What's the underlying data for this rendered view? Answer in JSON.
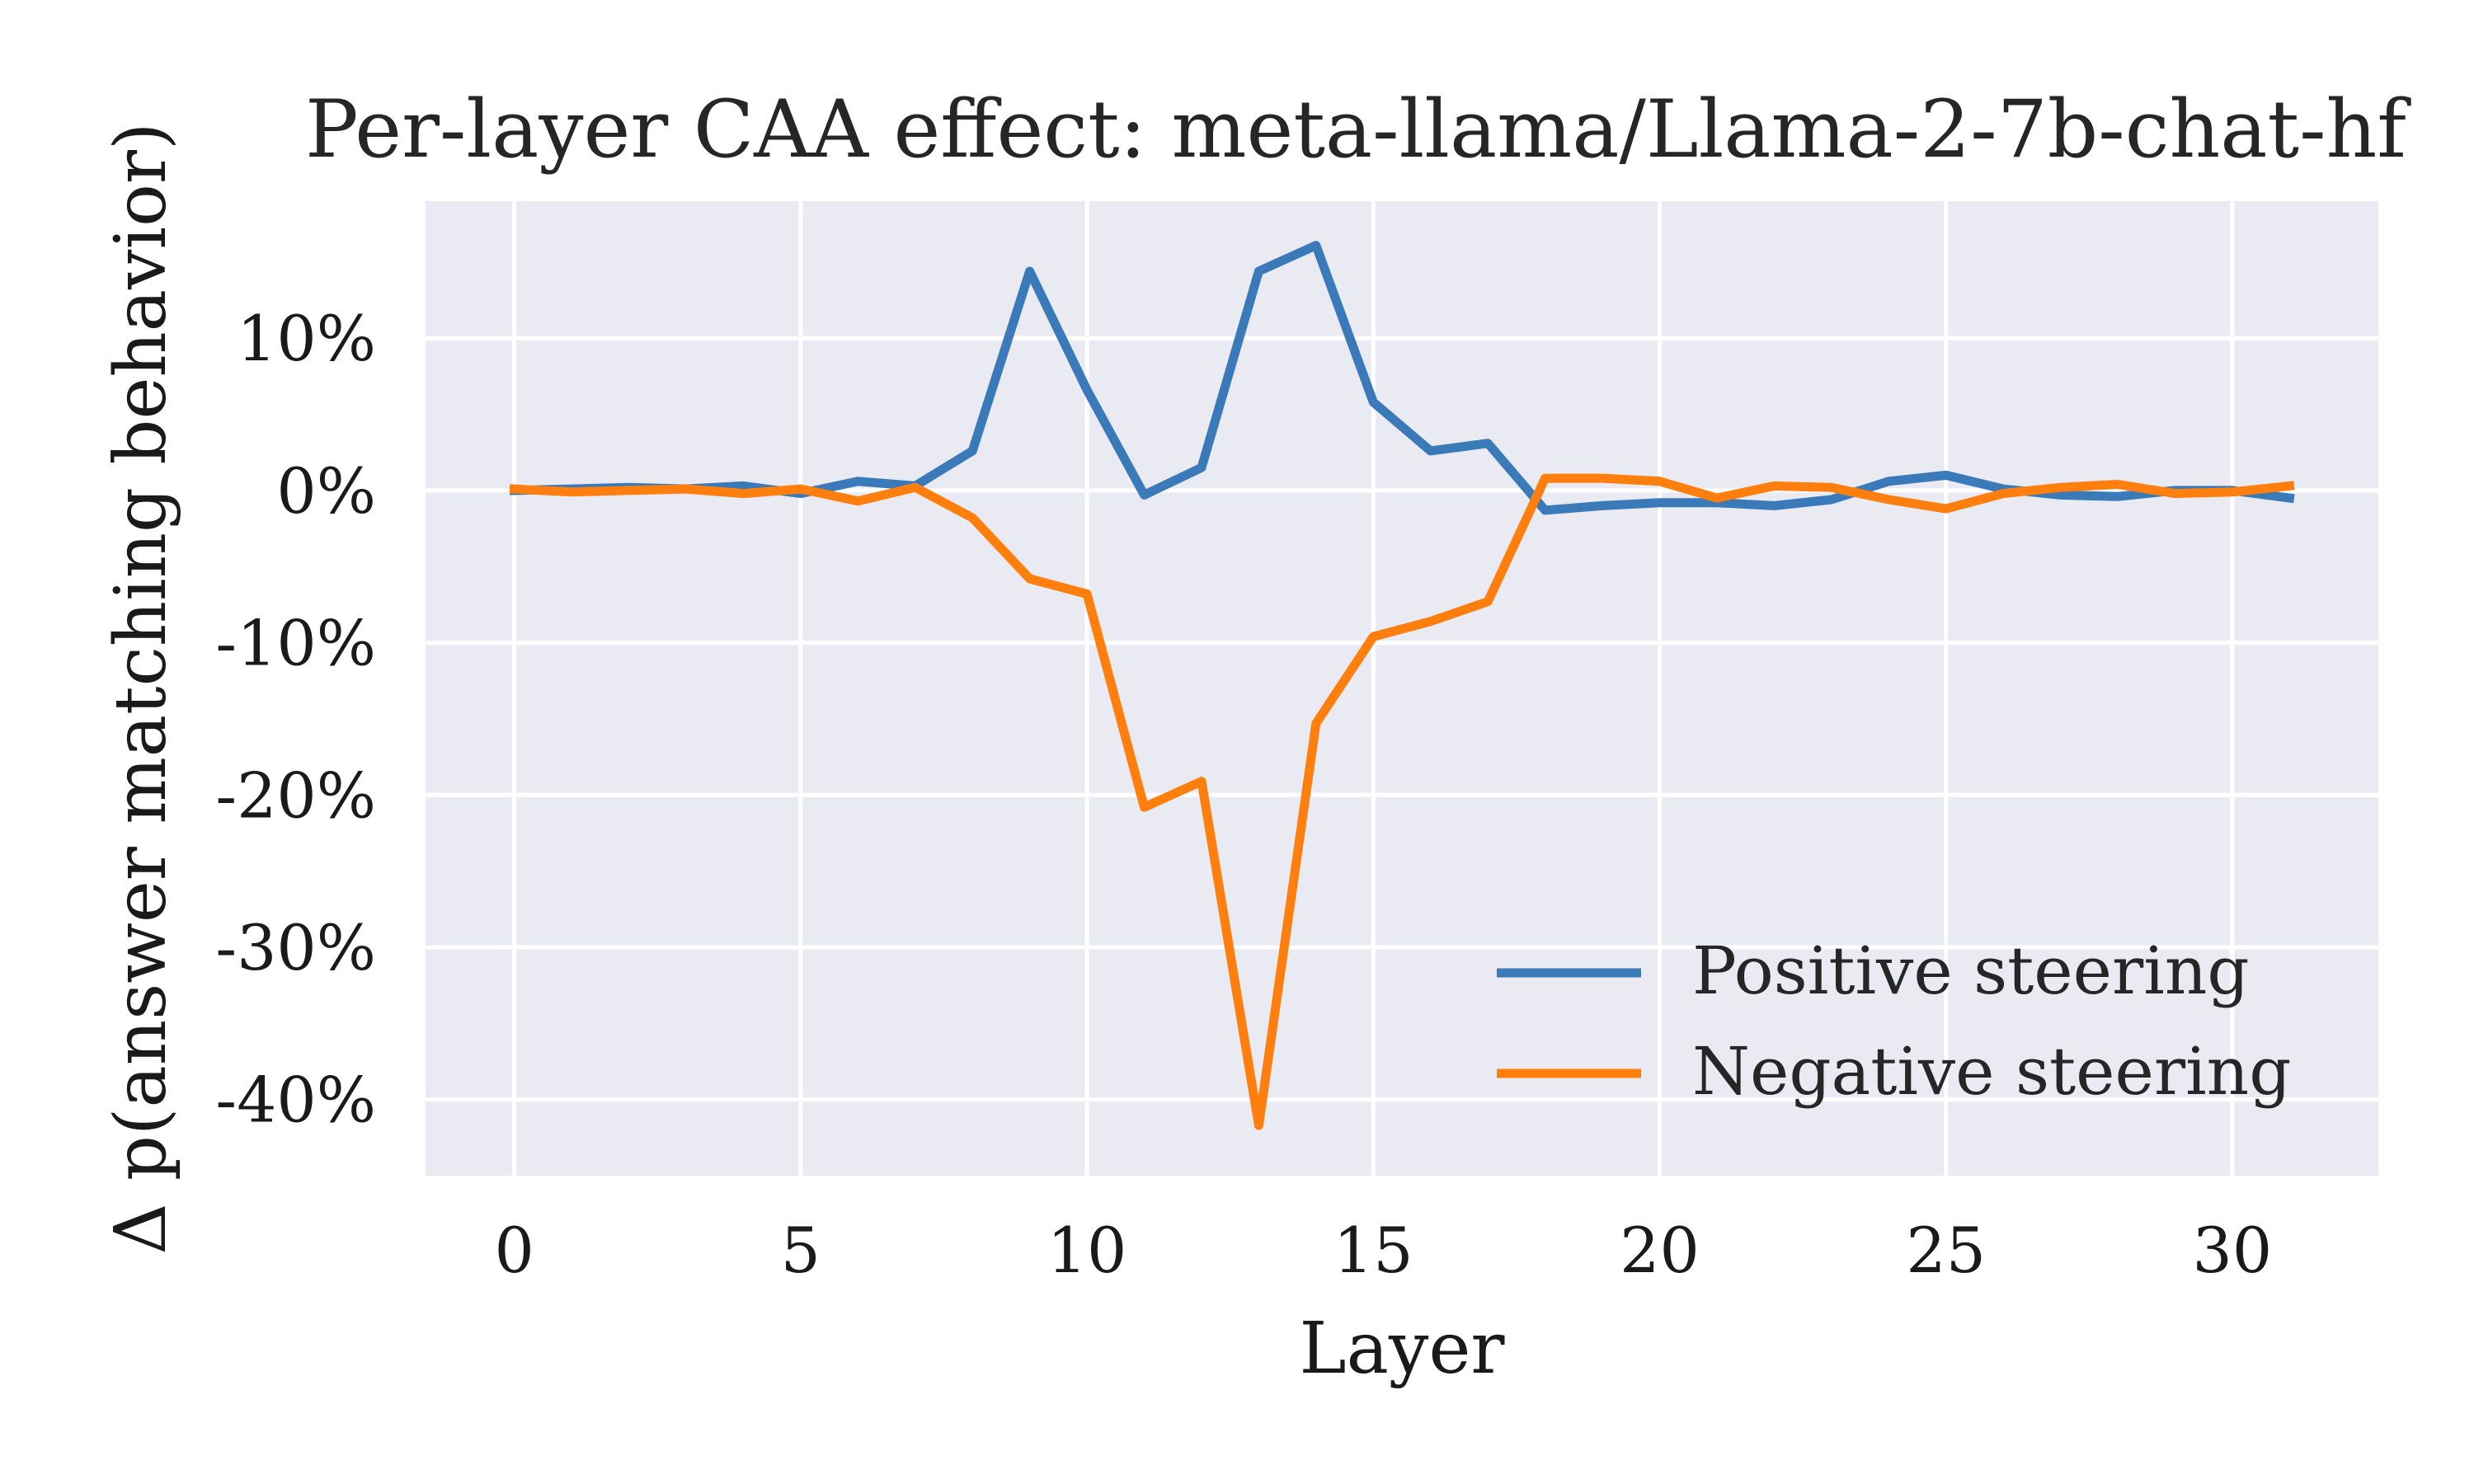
{
  "chart_data": {
    "type": "line",
    "title": "Per-layer CAA effect: meta-llama/Llama-2-7b-chat-hf",
    "xlabel": "Layer",
    "ylabel": "Δ p(answer matching behavior)",
    "xlim": [
      -1.55,
      32.55
    ],
    "ylim": [
      -45,
      19
    ],
    "xticks": [
      0,
      5,
      10,
      15,
      20,
      25,
      30
    ],
    "xtick_labels": [
      "0",
      "5",
      "10",
      "15",
      "20",
      "25",
      "30"
    ],
    "yticks": [
      10,
      0,
      -10,
      -20,
      -30,
      -40
    ],
    "ytick_labels": [
      "10%",
      "0%",
      "-10%",
      "-20%",
      "-30%",
      "-40%"
    ],
    "grid": true,
    "legend_position": "lower-right",
    "x": [
      0,
      1,
      2,
      3,
      4,
      5,
      6,
      7,
      8,
      9,
      10,
      11,
      12,
      13,
      14,
      15,
      16,
      17,
      18,
      19,
      20,
      21,
      22,
      23,
      24,
      25,
      26,
      27,
      28,
      29,
      30,
      31
    ],
    "series": [
      {
        "name": "Positive steering",
        "color": "#3a7ab8",
        "values": [
          0.0,
          0.1,
          0.2,
          0.1,
          0.3,
          -0.2,
          0.6,
          0.3,
          2.6,
          14.4,
          6.6,
          -0.3,
          1.5,
          14.4,
          16.1,
          5.8,
          2.6,
          3.1,
          -1.3,
          -1.0,
          -0.8,
          -0.8,
          -1.0,
          -0.6,
          0.6,
          1.0,
          0.1,
          -0.3,
          -0.4,
          0.0,
          0.0,
          -0.5
        ]
      },
      {
        "name": "Negative steering",
        "color": "#ff7f0e",
        "values": [
          0.1,
          -0.1,
          0.0,
          0.1,
          -0.2,
          0.1,
          -0.7,
          0.2,
          -1.8,
          -5.8,
          -6.8,
          -20.8,
          -19.1,
          -41.7,
          -15.3,
          -9.6,
          -8.6,
          -7.3,
          0.8,
          0.8,
          0.6,
          -0.5,
          0.3,
          0.2,
          -0.6,
          -1.2,
          -0.2,
          0.2,
          0.4,
          -0.2,
          -0.1,
          0.3
        ]
      }
    ]
  }
}
